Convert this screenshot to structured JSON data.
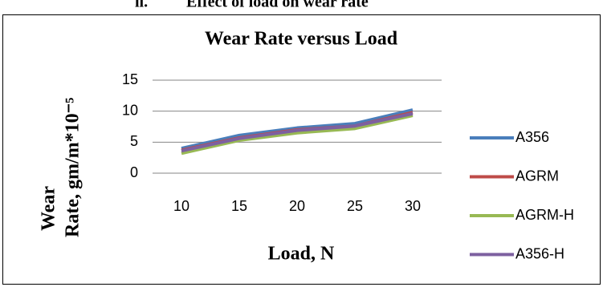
{
  "heading": {
    "number": "ii.",
    "text": "Effect of load on wear rate"
  },
  "chart_data": {
    "type": "line",
    "title": "Wear Rate versus Load",
    "ylabel": [
      "Wear",
      "Rate, gm/m*10⁻⁵"
    ],
    "xlabel": "Load, N",
    "categories": [
      "10",
      "15",
      "20",
      "25",
      "30"
    ],
    "series": [
      {
        "name": "A356",
        "color": "#4a7ebb",
        "values": [
          4.0,
          6.1,
          7.3,
          8.0,
          10.2
        ]
      },
      {
        "name": "AGRM",
        "color": "#be4b48",
        "values": [
          3.7,
          5.7,
          7.0,
          7.6,
          9.8
        ]
      },
      {
        "name": "AGRM-H",
        "color": "#98b954",
        "values": [
          3.2,
          5.3,
          6.5,
          7.2,
          9.3
        ]
      },
      {
        "name": "A356-H",
        "color": "#7d60a0",
        "values": [
          3.6,
          5.6,
          6.9,
          7.6,
          9.6
        ]
      }
    ],
    "ylim": [
      0,
      15
    ],
    "yticks": [
      0,
      5,
      10,
      15
    ],
    "grid": true,
    "legend": "right"
  }
}
